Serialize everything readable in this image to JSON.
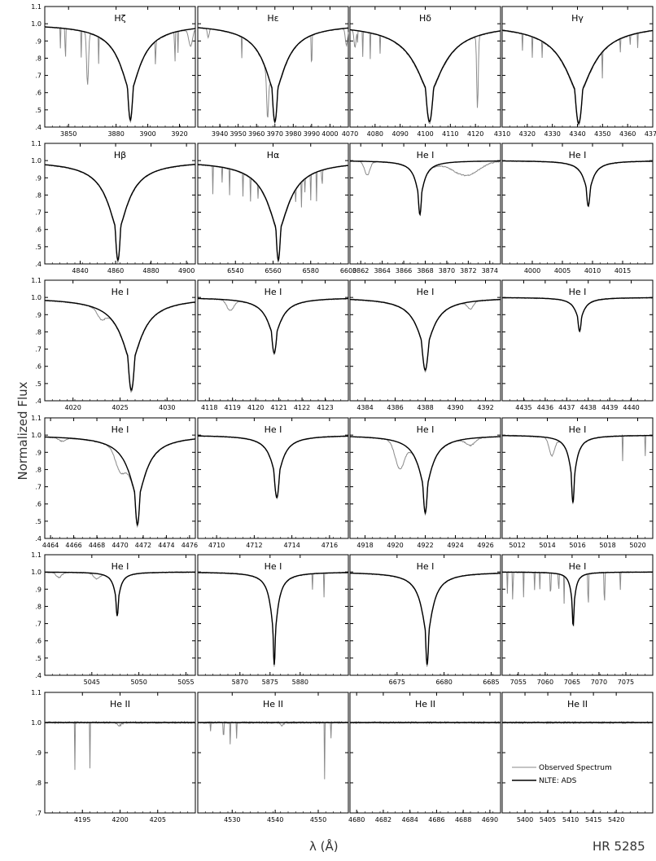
{
  "figure": {
    "ylabel": "Normalized Flux",
    "xlabel": "λ (Å)",
    "star": "HR 5285",
    "legend": {
      "observed": "Observed Spectrum",
      "model": "NLTE: ADS"
    },
    "colors": {
      "observed": "#8a8a8a",
      "model": "#000000"
    }
  },
  "chart_data": [
    {
      "type": "line",
      "title": "Hζ",
      "xlim": [
        3835,
        3930
      ],
      "ylim": [
        0.4,
        1.1
      ],
      "yticks": [
        "1.1",
        "1.0",
        ".9",
        ".8",
        ".7",
        ".6",
        ".5",
        ".4"
      ],
      "xticks": [
        3850,
        3880,
        3900,
        3920
      ],
      "lines": [
        {
          "center": 3889,
          "depth": 0.57,
          "width": 4,
          "wing": 18
        }
      ],
      "extra": [
        {
          "center": 3862,
          "depth": 0.3,
          "width": 0.6
        },
        {
          "center": 3927,
          "depth": 0.1,
          "width": 1.2
        }
      ],
      "noise": [
        3845,
        3848,
        3858,
        3869,
        3905,
        3917,
        3919
      ],
      "observed_label": "Observed Spectrum",
      "model_label": "NLTE: ADS"
    },
    {
      "type": "line",
      "title": "Hε",
      "xlim": [
        3928,
        4010
      ],
      "ylim": [
        0.4,
        1.1
      ],
      "yticks": [
        "1.1",
        "1.0",
        ".9",
        ".8",
        ".7",
        ".6",
        ".5",
        ".4"
      ],
      "xticks": [
        3940,
        3950,
        3960,
        3970,
        3980,
        3990,
        4000
      ],
      "lines": [
        {
          "center": 3970,
          "depth": 0.58,
          "width": 3.5,
          "wing": 16
        }
      ],
      "extra": [
        {
          "center": 3933.7,
          "depth": 0.05,
          "width": 0.5
        },
        {
          "center": 4009,
          "depth": 0.1,
          "width": 0.6
        },
        {
          "center": 3966,
          "depth": 0.25,
          "width": 0.5
        }
      ],
      "noise": [
        3952,
        3990
      ]
    },
    {
      "type": "line",
      "title": "Hδ",
      "xlim": [
        4070,
        4130
      ],
      "ylim": [
        0.4,
        1.1
      ],
      "yticks": [
        "1.1",
        "1.0",
        ".9",
        ".8",
        ".7",
        ".6",
        ".5",
        ".4"
      ],
      "xticks": [
        4070,
        4080,
        4090,
        4100,
        4110,
        4120
      ],
      "lines": [
        {
          "center": 4101.7,
          "depth": 0.58,
          "width": 3.5,
          "wing": 16
        }
      ],
      "extra": [
        {
          "center": 4120.8,
          "depth": 0.42,
          "width": 0.3
        },
        {
          "center": 4072,
          "depth": 0.1,
          "width": 0.4
        }
      ],
      "noise": [
        4073,
        4075,
        4078,
        4082
      ]
    },
    {
      "type": "line",
      "title": "Hγ",
      "xlim": [
        4310,
        4370
      ],
      "ylim": [
        0.4,
        1.1
      ],
      "yticks": [
        "1.1",
        "1.0",
        ".9",
        ".8",
        ".7",
        ".6",
        ".5",
        ".4"
      ],
      "xticks": [
        4310,
        4320,
        4330,
        4340,
        4350,
        4360,
        4370
      ],
      "lines": [
        {
          "center": 4340.5,
          "depth": 0.59,
          "width": 3.5,
          "wing": 16
        }
      ],
      "extra": [],
      "noise": [
        4318,
        4322,
        4326,
        4350,
        4357,
        4361,
        4364
      ]
    },
    {
      "type": "line",
      "title": "Hβ",
      "xlim": [
        4820,
        4905
      ],
      "ylim": [
        0.4,
        1.1
      ],
      "yticks": [
        "1.1",
        "1.0",
        ".9",
        ".8",
        ".7",
        ".6",
        ".5",
        ".4"
      ],
      "xticks": [
        4840,
        4860,
        4880,
        4900
      ],
      "lines": [
        {
          "center": 4861.3,
          "depth": 0.59,
          "width": 3.5,
          "wing": 16
        }
      ],
      "extra": [],
      "noise": []
    },
    {
      "type": "line",
      "title": "Hα",
      "xlim": [
        6520,
        6600
      ],
      "ylim": [
        0.4,
        1.1
      ],
      "yticks": [
        "1.1",
        "1.0",
        ".9",
        ".8",
        ".7",
        ".6",
        ".5",
        ".4"
      ],
      "xticks": [
        6540,
        6560,
        6580,
        6600
      ],
      "lines": [
        {
          "center": 6562.8,
          "depth": 0.59,
          "width": 3,
          "wing": 16
        }
      ],
      "extra": [],
      "noise": [
        6528,
        6533,
        6537,
        6544,
        6548,
        6552,
        6572,
        6575,
        6577,
        6580,
        6583,
        6586
      ]
    },
    {
      "type": "line",
      "title": "He I",
      "xlim": [
        3861,
        3875
      ],
      "ylim": [
        0.4,
        1.1
      ],
      "yticks": [
        "1.1",
        "1.0",
        ".9",
        ".8",
        ".7",
        ".6",
        ".5",
        ".4"
      ],
      "xticks": [
        "3862",
        "3864",
        "3866",
        "3868",
        "3870",
        "3872",
        "3874"
      ],
      "lines": [
        {
          "center": 3867.5,
          "depth": 0.32,
          "width": 0.35,
          "wing": 1
        }
      ],
      "extra": [
        {
          "center": 3862.6,
          "depth": 0.08,
          "width": 0.25
        },
        {
          "center": 3871.8,
          "depth": 0.08,
          "width": 1.2
        }
      ],
      "noise": []
    },
    {
      "type": "line",
      "title": "He I",
      "xlim": [
        3995,
        4020
      ],
      "ylim": [
        0.4,
        1.1
      ],
      "yticks": [
        "1.1",
        "1.0",
        ".9",
        ".8",
        ".7",
        ".6",
        ".5",
        ".4"
      ],
      "xticks": [
        4000,
        4005,
        4010,
        4015
      ],
      "lines": [
        {
          "center": 4009.3,
          "depth": 0.27,
          "width": 0.7,
          "wing": 2
        }
      ],
      "extra": [],
      "noise": []
    },
    {
      "type": "line",
      "title": "He I",
      "xlim": [
        4017,
        4033
      ],
      "ylim": [
        0.4,
        1.1
      ],
      "yticks": [
        "1.1",
        "1.0",
        ".9",
        ".8",
        ".7",
        ".6",
        ".5",
        ".4"
      ],
      "xticks": [
        4020,
        4025,
        4030
      ],
      "lines": [
        {
          "center": 4026.2,
          "depth": 0.55,
          "width": 0.8,
          "wing": 3
        }
      ],
      "extra": [
        {
          "center": 4023,
          "depth": 0.05,
          "width": 0.4
        }
      ],
      "noise": []
    },
    {
      "type": "line",
      "title": "He I",
      "xlim": [
        4117.5,
        4124
      ],
      "ylim": [
        0.4,
        1.1
      ],
      "yticks": [
        "1.1",
        "1.0",
        ".9",
        ".8",
        ".7",
        ".6",
        ".5",
        ".4"
      ],
      "xticks": [
        "4118",
        "4119",
        "4120",
        "4121",
        "4122",
        "4123"
      ],
      "lines": [
        {
          "center": 4120.8,
          "depth": 0.33,
          "width": 0.25,
          "wing": 0.8
        }
      ],
      "extra": [
        {
          "center": 4118.9,
          "depth": 0.06,
          "width": 0.15
        }
      ],
      "noise": []
    },
    {
      "type": "line",
      "title": "He I",
      "xlim": [
        4383,
        4393
      ],
      "ylim": [
        0.4,
        1.1
      ],
      "yticks": [
        "1.1",
        "1.0",
        ".9",
        ".8",
        ".7",
        ".6",
        ".5",
        ".4"
      ],
      "xticks": [
        "4384",
        "4386",
        "4388",
        "4390",
        "4392"
      ],
      "lines": [
        {
          "center": 4388,
          "depth": 0.43,
          "width": 0.5,
          "wing": 1.5
        }
      ],
      "extra": [
        {
          "center": 4391,
          "depth": 0.04,
          "width": 0.2
        }
      ],
      "noise": []
    },
    {
      "type": "line",
      "title": "He I",
      "xlim": [
        4434,
        4441
      ],
      "ylim": [
        0.4,
        1.1
      ],
      "yticks": [
        "1.1",
        "1.0",
        ".9",
        ".8",
        ".7",
        ".6",
        ".5",
        ".4"
      ],
      "xticks": [
        "4435",
        "4436",
        "4437",
        "4438",
        "4439",
        "4440"
      ],
      "lines": [
        {
          "center": 4437.6,
          "depth": 0.2,
          "width": 0.18,
          "wing": 0.5
        }
      ],
      "extra": [],
      "noise": []
    },
    {
      "type": "line",
      "title": "He I",
      "xlim": [
        4463.5,
        4476.5
      ],
      "ylim": [
        0.4,
        1.1
      ],
      "yticks": [
        "1.1",
        "1.0",
        ".9",
        ".8",
        ".7",
        ".6",
        ".5",
        ".4"
      ],
      "xticks": [
        "4464",
        "4466",
        "4468",
        "4470",
        "4472",
        "4474",
        "4476"
      ],
      "lines": [
        {
          "center": 4471.5,
          "depth": 0.53,
          "width": 0.5,
          "wing": 2
        }
      ],
      "extra": [
        {
          "center": 4470,
          "depth": 0.1,
          "width": 0.4
        },
        {
          "center": 4465,
          "depth": 0.02,
          "width": 0.3
        }
      ],
      "noise": []
    },
    {
      "type": "line",
      "title": "He I",
      "xlim": [
        4709,
        4717
      ],
      "ylim": [
        0.4,
        1.1
      ],
      "yticks": [
        "1.1",
        "1.0",
        ".9",
        ".8",
        ".7",
        ".6",
        ".5",
        ".4"
      ],
      "xticks": [
        "4710",
        "4712",
        "4714",
        "4716"
      ],
      "lines": [
        {
          "center": 4713.2,
          "depth": 0.37,
          "width": 0.3,
          "wing": 0.8
        }
      ],
      "extra": [],
      "noise": []
    },
    {
      "type": "line",
      "title": "He I",
      "xlim": [
        4917,
        4927
      ],
      "ylim": [
        0.4,
        1.1
      ],
      "yticks": [
        "1.1",
        "1.0",
        ".9",
        ".8",
        ".7",
        ".6",
        ".5",
        ".4"
      ],
      "xticks": [
        "4918",
        "4920",
        "4922",
        "4924",
        "4926"
      ],
      "lines": [
        {
          "center": 4922,
          "depth": 0.46,
          "width": 0.35,
          "wing": 1.2
        }
      ],
      "extra": [
        {
          "center": 4920.3,
          "depth": 0.15,
          "width": 0.3
        },
        {
          "center": 4925,
          "depth": 0.04,
          "width": 0.3
        }
      ],
      "noise": []
    },
    {
      "type": "line",
      "title": "He I",
      "xlim": [
        5011,
        5021
      ],
      "ylim": [
        0.4,
        1.1
      ],
      "yticks": [
        "1.1",
        "1.0",
        ".9",
        ".8",
        ".7",
        ".6",
        ".5",
        ".4"
      ],
      "xticks": [
        "5012",
        "5014",
        "5016",
        "5018",
        "5020"
      ],
      "lines": [
        {
          "center": 5015.7,
          "depth": 0.4,
          "width": 0.22,
          "wing": 0.6
        }
      ],
      "extra": [
        {
          "center": 5014.3,
          "depth": 0.1,
          "width": 0.18
        }
      ],
      "noise": [
        5019,
        5020.5
      ]
    },
    {
      "type": "line",
      "title": "He I",
      "xlim": [
        5040,
        5056
      ],
      "ylim": [
        0.4,
        1.1
      ],
      "yticks": [
        "1.1",
        "1.0",
        ".9",
        ".8",
        ".7",
        ".6",
        ".5",
        ".4"
      ],
      "xticks": [
        "5045",
        "5050",
        "5055"
      ],
      "lines": [
        {
          "center": 5047.7,
          "depth": 0.26,
          "width": 0.3,
          "wing": 0.8
        }
      ],
      "extra": [
        {
          "center": 5041.5,
          "depth": 0.03,
          "width": 0.3
        },
        {
          "center": 5045.5,
          "depth": 0.03,
          "width": 0.3
        }
      ],
      "noise": []
    },
    {
      "type": "line",
      "title": "He I",
      "xlim": [
        5863,
        5888
      ],
      "ylim": [
        0.4,
        1.1
      ],
      "yticks": [
        "1.1",
        "1.0",
        ".9",
        ".8",
        ".7",
        ".6",
        ".5",
        ".4"
      ],
      "xticks": [
        "5870",
        "5875",
        "5880"
      ],
      "lines": [
        {
          "center": 5875.7,
          "depth": 0.55,
          "width": 0.45,
          "wing": 1.5
        }
      ],
      "extra": [],
      "noise": [
        5882,
        5884
      ]
    },
    {
      "type": "line",
      "title": "He I",
      "xlim": [
        6670,
        6686
      ],
      "ylim": [
        0.4,
        1.1
      ],
      "yticks": [
        "1.1",
        "1.0",
        ".9",
        ".8",
        ".7",
        ".6",
        ".5",
        ".4"
      ],
      "xticks": [
        "6675",
        "6680",
        "6685"
      ],
      "lines": [
        {
          "center": 6678.2,
          "depth": 0.55,
          "width": 0.4,
          "wing": 1.5
        }
      ],
      "extra": [],
      "noise": []
    },
    {
      "type": "line",
      "title": "He I",
      "xlim": [
        7052,
        7080
      ],
      "ylim": [
        0.4,
        1.1
      ],
      "yticks": [
        "1.1",
        "1.0",
        ".9",
        ".8",
        ".7",
        ".6",
        ".5",
        ".4"
      ],
      "xticks": [
        "7055",
        "7060",
        "7065",
        "7070",
        "7075"
      ],
      "lines": [
        {
          "center": 7065.2,
          "depth": 0.32,
          "width": 0.4,
          "wing": 1
        }
      ],
      "extra": [],
      "noise": [
        7053,
        7054,
        7056,
        7058,
        7059,
        7061,
        7062.5,
        7063.5,
        7068,
        7071,
        7074
      ]
    },
    {
      "type": "line",
      "title": "He II",
      "xlim": [
        4190,
        4210
      ],
      "ylim": [
        0.7,
        1.1
      ],
      "yticks": [
        "1.1",
        "1.0",
        ".9",
        ".8",
        ".7"
      ],
      "xticks": [
        "4195",
        "4200",
        "4205"
      ],
      "lines": [],
      "extra": [
        {
          "center": 4199.9,
          "depth": 0.01,
          "width": 0.3
        }
      ],
      "noise": [
        4194,
        4196
      ]
    },
    {
      "type": "line",
      "title": "He II",
      "xlim": [
        4522,
        4557
      ],
      "ylim": [
        0.7,
        1.1
      ],
      "yticks": [
        "1.1",
        "1.0",
        ".9",
        ".8",
        ".7"
      ],
      "xticks": [
        "4530",
        "4540",
        "4550"
      ],
      "lines": [],
      "extra": [
        {
          "center": 4541.6,
          "depth": 0.01,
          "width": 0.3
        }
      ],
      "noise": [],
      "spikes": [
        [
          4525,
          0.03
        ],
        [
          4528,
          0.04
        ],
        [
          4529.5,
          0.07
        ],
        [
          4531,
          0.05
        ],
        [
          4551.5,
          0.19
        ],
        [
          4553,
          0.05
        ]
      ]
    },
    {
      "type": "line",
      "title": "He II",
      "xlim": [
        4679.5,
        4690.8
      ],
      "ylim": [
        0.7,
        1.1
      ],
      "yticks": [
        "1.1",
        "1.0",
        ".9",
        ".8",
        ".7"
      ],
      "xticks": [
        "4680",
        "4682",
        "4684",
        "4686",
        "4688",
        "4690"
      ],
      "lines": [],
      "extra": [],
      "noise": []
    },
    {
      "type": "line",
      "title": "He II",
      "xlim": [
        5395,
        5428
      ],
      "ylim": [
        0.7,
        1.1
      ],
      "yticks": [
        "1.1",
        "1.0",
        ".9",
        ".8",
        ".7"
      ],
      "xticks": [
        "5400",
        "5405",
        "5410",
        "5415",
        "5420"
      ],
      "lines": [],
      "extra": [],
      "noise": [],
      "legend": true
    }
  ]
}
